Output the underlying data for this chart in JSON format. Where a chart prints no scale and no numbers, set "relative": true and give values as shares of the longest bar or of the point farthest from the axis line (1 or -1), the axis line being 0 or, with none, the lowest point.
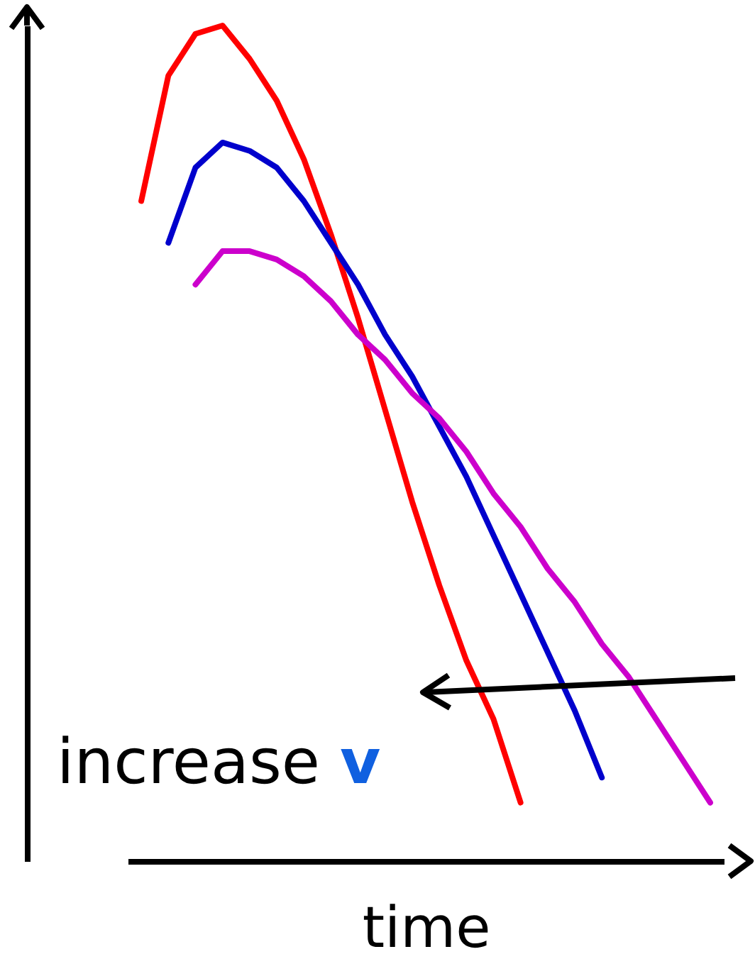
{
  "chart_data": {
    "type": "line",
    "xlabel": "time",
    "relative": true,
    "tick_labels": false,
    "line_style": "solid",
    "categories": [
      null,
      null,
      null,
      null,
      null,
      null,
      null,
      null,
      null,
      null,
      null,
      null,
      null,
      null,
      null,
      null,
      null,
      null,
      null,
      null,
      null,
      null
    ],
    "series": [
      {
        "color": "#ff0000",
        "values": [
          0.79,
          0.94,
          0.99,
          1,
          0.96,
          0.91,
          0.84,
          0.75,
          0.65,
          0.54,
          0.43,
          0.33,
          0.24,
          0.17,
          0.07,
          null,
          null,
          null,
          null,
          null,
          null,
          null
        ]
      },
      {
        "color": "#0000cc",
        "values": [
          null,
          0.74,
          0.83,
          0.86,
          0.85,
          0.83,
          0.79,
          0.74,
          0.69,
          0.63,
          0.58,
          0.52,
          0.46,
          0.39,
          0.32,
          0.25,
          0.18,
          0.1,
          null,
          null,
          null,
          null
        ]
      },
      {
        "color": "#cc00cc",
        "values": [
          null,
          null,
          0.69,
          0.73,
          0.73,
          0.72,
          0.7,
          0.67,
          0.63,
          0.6,
          0.56,
          0.53,
          0.49,
          0.44,
          0.4,
          0.35,
          0.31,
          0.26,
          0.22,
          0.17,
          0.12,
          0.07
        ]
      }
    ],
    "annotations": [
      "increase v"
    ]
  }
}
